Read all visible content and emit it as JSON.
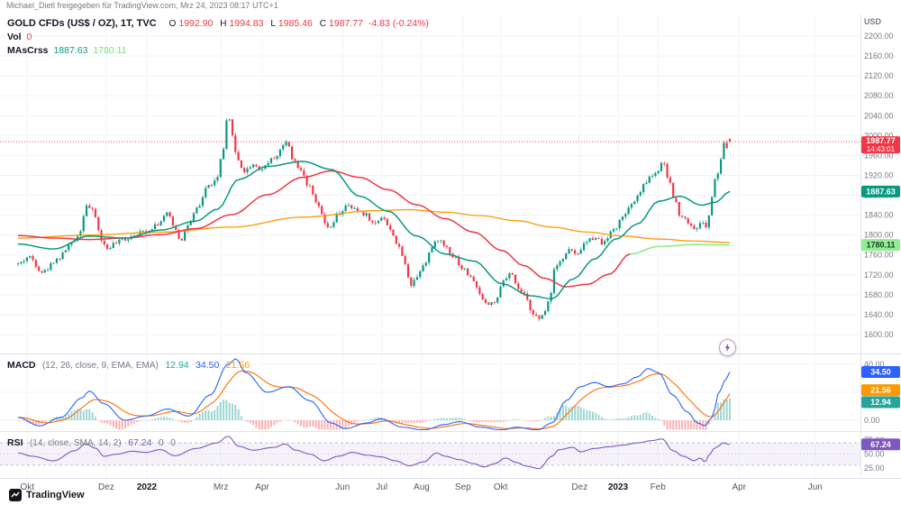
{
  "header": {
    "attribution": "Michael_Dietl freigegeben für TradingView.com, Mrz 24, 2023 08:17 UTC+1"
  },
  "footer": {
    "logo_text": "TradingView"
  },
  "price_pane": {
    "symbol": "GOLD CFDs (US$ / OZ), 1T, TVC",
    "currency": "USD",
    "ohlc": {
      "o_label": "O",
      "o": "1992.90",
      "h_label": "H",
      "h": "1994.83",
      "l_label": "L",
      "l": "1985.46",
      "c_label": "C",
      "c": "1987.77",
      "change": "-4.83 (-0.24%)"
    },
    "vol_label": "Vol",
    "vol_value": "0",
    "ma_label": "MAsCrss",
    "ma_fast_value": "1887.63",
    "ma_slow_value": "1780.11"
  },
  "macd_pane": {
    "title": "MACD",
    "params": "(12, 26, close, 9, EMA, EMA)",
    "hist_value": "12.94",
    "macd_value": "34.50",
    "signal_value": "21.56"
  },
  "rsi_pane": {
    "title": "RSI",
    "params": "(14, close, SMA, 14, 2)",
    "value": "67.24",
    "extra1": "0",
    "extra2": "0"
  },
  "chart_data": {
    "type": "candlestick",
    "title": "GOLD CFDs (US$ / OZ), 1T, TVC",
    "interval": "1T",
    "num_candles": 240,
    "seed": 42,
    "last_price": 1987.77,
    "last_candle": {
      "o": 1992.9,
      "h": 1994.83,
      "l": 1985.46,
      "c": 1987.77
    },
    "price_axis": {
      "min": 1580,
      "max": 2220,
      "ticks": [
        2200,
        2160,
        2120,
        2080,
        2040,
        2000,
        1960,
        1920,
        1880,
        1840,
        1800,
        1760,
        1720,
        1680,
        1640,
        1600
      ]
    },
    "x_labels": [
      {
        "t": 0.013,
        "label": "Okt"
      },
      {
        "t": 0.124,
        "label": "Dez"
      },
      {
        "t": 0.181,
        "label": "2022",
        "bold": true
      },
      {
        "t": 0.285,
        "label": "Mrz"
      },
      {
        "t": 0.343,
        "label": "Apr"
      },
      {
        "t": 0.456,
        "label": "Jun"
      },
      {
        "t": 0.511,
        "label": "Jul"
      },
      {
        "t": 0.567,
        "label": "Aug"
      },
      {
        "t": 0.625,
        "label": "Sep"
      },
      {
        "t": 0.678,
        "label": "Okt"
      },
      {
        "t": 0.789,
        "label": "Dez"
      },
      {
        "t": 0.843,
        "label": "2023",
        "bold": true
      },
      {
        "t": 0.899,
        "label": "Feb"
      },
      {
        "t": 1.013,
        "label": "Apr"
      },
      {
        "t": 1.12,
        "label": "Jun"
      }
    ],
    "close_path": [
      [
        0.0,
        1742
      ],
      [
        0.015,
        1756
      ],
      [
        0.035,
        1726
      ],
      [
        0.055,
        1752
      ],
      [
        0.075,
        1782
      ],
      [
        0.088,
        1808
      ],
      [
        0.095,
        1862
      ],
      [
        0.105,
        1848
      ],
      [
        0.118,
        1790
      ],
      [
        0.124,
        1772
      ],
      [
        0.135,
        1782
      ],
      [
        0.15,
        1792
      ],
      [
        0.165,
        1802
      ],
      [
        0.18,
        1808
      ],
      [
        0.195,
        1822
      ],
      [
        0.21,
        1842
      ],
      [
        0.222,
        1812
      ],
      [
        0.228,
        1790
      ],
      [
        0.24,
        1822
      ],
      [
        0.252,
        1852
      ],
      [
        0.266,
        1898
      ],
      [
        0.278,
        1908
      ],
      [
        0.288,
        1968
      ],
      [
        0.295,
        2042
      ],
      [
        0.3,
        2008
      ],
      [
        0.308,
        1952
      ],
      [
        0.318,
        1928
      ],
      [
        0.33,
        1942
      ],
      [
        0.342,
        1932
      ],
      [
        0.352,
        1948
      ],
      [
        0.362,
        1958
      ],
      [
        0.372,
        1978
      ],
      [
        0.378,
        1988
      ],
      [
        0.388,
        1948
      ],
      [
        0.398,
        1932
      ],
      [
        0.408,
        1898
      ],
      [
        0.42,
        1862
      ],
      [
        0.432,
        1822
      ],
      [
        0.438,
        1812
      ],
      [
        0.45,
        1842
      ],
      [
        0.462,
        1858
      ],
      [
        0.475,
        1850
      ],
      [
        0.488,
        1842
      ],
      [
        0.5,
        1822
      ],
      [
        0.512,
        1838
      ],
      [
        0.524,
        1808
      ],
      [
        0.536,
        1772
      ],
      [
        0.545,
        1738
      ],
      [
        0.551,
        1700
      ],
      [
        0.558,
        1712
      ],
      [
        0.57,
        1742
      ],
      [
        0.582,
        1775
      ],
      [
        0.59,
        1792
      ],
      [
        0.6,
        1778
      ],
      [
        0.612,
        1758
      ],
      [
        0.625,
        1732
      ],
      [
        0.638,
        1712
      ],
      [
        0.65,
        1678
      ],
      [
        0.66,
        1660
      ],
      [
        0.672,
        1668
      ],
      [
        0.682,
        1708
      ],
      [
        0.692,
        1722
      ],
      [
        0.702,
        1692
      ],
      [
        0.712,
        1678
      ],
      [
        0.72,
        1652
      ],
      [
        0.728,
        1636
      ],
      [
        0.733,
        1628
      ],
      [
        0.74,
        1648
      ],
      [
        0.748,
        1682
      ],
      [
        0.755,
        1742
      ],
      [
        0.765,
        1752
      ],
      [
        0.775,
        1772
      ],
      [
        0.785,
        1758
      ],
      [
        0.795,
        1782
      ],
      [
        0.805,
        1792
      ],
      [
        0.812,
        1798
      ],
      [
        0.82,
        1782
      ],
      [
        0.828,
        1798
      ],
      [
        0.838,
        1812
      ],
      [
        0.848,
        1832
      ],
      [
        0.858,
        1852
      ],
      [
        0.868,
        1872
      ],
      [
        0.878,
        1898
      ],
      [
        0.888,
        1918
      ],
      [
        0.898,
        1928
      ],
      [
        0.906,
        1944
      ],
      [
        0.914,
        1912
      ],
      [
        0.922,
        1872
      ],
      [
        0.93,
        1842
      ],
      [
        0.938,
        1832
      ],
      [
        0.944,
        1822
      ],
      [
        0.95,
        1812
      ],
      [
        0.956,
        1818
      ],
      [
        0.962,
        1828
      ],
      [
        0.966,
        1812
      ],
      [
        0.97,
        1838
      ],
      [
        0.974,
        1872
      ],
      [
        0.978,
        1908
      ],
      [
        0.982,
        1918
      ],
      [
        0.986,
        1942
      ],
      [
        0.99,
        1978
      ],
      [
        0.994,
        1988
      ],
      [
        0.997,
        1972
      ],
      [
        1.0,
        1987.77
      ]
    ],
    "ma_fast": {
      "color": "#089981",
      "end": 1887.63,
      "path": [
        [
          0,
          1782
        ],
        [
          0.05,
          1772
        ],
        [
          0.1,
          1798
        ],
        [
          0.15,
          1794
        ],
        [
          0.2,
          1810
        ],
        [
          0.25,
          1828
        ],
        [
          0.28,
          1852
        ],
        [
          0.31,
          1912
        ],
        [
          0.35,
          1938
        ],
        [
          0.4,
          1948
        ],
        [
          0.44,
          1932
        ],
        [
          0.48,
          1878
        ],
        [
          0.52,
          1848
        ],
        [
          0.56,
          1798
        ],
        [
          0.6,
          1762
        ],
        [
          0.64,
          1748
        ],
        [
          0.68,
          1702
        ],
        [
          0.72,
          1678
        ],
        [
          0.75,
          1672
        ],
        [
          0.78,
          1712
        ],
        [
          0.81,
          1752
        ],
        [
          0.84,
          1792
        ],
        [
          0.87,
          1822
        ],
        [
          0.9,
          1868
        ],
        [
          0.93,
          1878
        ],
        [
          0.96,
          1860
        ],
        [
          0.98,
          1866
        ],
        [
          1.0,
          1887.63
        ]
      ]
    },
    "ma_slow": {
      "color": "#F23645",
      "tail_color": "#90EE90",
      "switch_t": 0.86,
      "end": 1780.11,
      "path": [
        [
          0,
          1799
        ],
        [
          0.05,
          1794
        ],
        [
          0.1,
          1791
        ],
        [
          0.15,
          1794
        ],
        [
          0.2,
          1801
        ],
        [
          0.25,
          1813
        ],
        [
          0.3,
          1841
        ],
        [
          0.35,
          1881
        ],
        [
          0.4,
          1916
        ],
        [
          0.44,
          1929
        ],
        [
          0.48,
          1916
        ],
        [
          0.52,
          1891
        ],
        [
          0.56,
          1861
        ],
        [
          0.6,
          1833
        ],
        [
          0.64,
          1806
        ],
        [
          0.68,
          1769
        ],
        [
          0.71,
          1739
        ],
        [
          0.74,
          1713
        ],
        [
          0.77,
          1696
        ],
        [
          0.8,
          1701
        ],
        [
          0.83,
          1721
        ],
        [
          0.86,
          1762
        ],
        [
          0.9,
          1777
        ],
        [
          0.95,
          1781
        ],
        [
          1.0,
          1780.11
        ]
      ]
    },
    "ma_long": {
      "color": "#FF9800",
      "path": [
        [
          0,
          1794
        ],
        [
          0.1,
          1800
        ],
        [
          0.2,
          1806
        ],
        [
          0.3,
          1816
        ],
        [
          0.4,
          1836
        ],
        [
          0.5,
          1849
        ],
        [
          0.55,
          1851
        ],
        [
          0.6,
          1846
        ],
        [
          0.65,
          1839
        ],
        [
          0.7,
          1829
        ],
        [
          0.75,
          1816
        ],
        [
          0.8,
          1806
        ],
        [
          0.85,
          1798
        ],
        [
          0.9,
          1792
        ],
        [
          0.95,
          1788
        ],
        [
          1.0,
          1785
        ]
      ]
    },
    "macd": {
      "ticks": [
        40,
        20,
        0
      ],
      "line_color": "#2962FF",
      "signal_color": "#FF6D00",
      "hist_pos": "#26A69A",
      "hist_neg": "#FF5252",
      "end_line": 34.5,
      "end_signal": 21.56,
      "end_hist": 12.94,
      "line_path": [
        [
          0,
          2
        ],
        [
          0.03,
          -4
        ],
        [
          0.06,
          2
        ],
        [
          0.09,
          16
        ],
        [
          0.1,
          21
        ],
        [
          0.12,
          12
        ],
        [
          0.15,
          0
        ],
        [
          0.18,
          3
        ],
        [
          0.21,
          8
        ],
        [
          0.24,
          3
        ],
        [
          0.27,
          18
        ],
        [
          0.295,
          40
        ],
        [
          0.306,
          44
        ],
        [
          0.32,
          34
        ],
        [
          0.35,
          20
        ],
        [
          0.38,
          24
        ],
        [
          0.41,
          14
        ],
        [
          0.44,
          -2
        ],
        [
          0.46,
          -6
        ],
        [
          0.49,
          -2
        ],
        [
          0.51,
          1
        ],
        [
          0.54,
          -5
        ],
        [
          0.57,
          -7
        ],
        [
          0.6,
          -3
        ],
        [
          0.62,
          -1
        ],
        [
          0.65,
          -5
        ],
        [
          0.68,
          -7
        ],
        [
          0.7,
          -5
        ],
        [
          0.73,
          -7
        ],
        [
          0.75,
          -2
        ],
        [
          0.77,
          14
        ],
        [
          0.79,
          24
        ],
        [
          0.81,
          27
        ],
        [
          0.83,
          24
        ],
        [
          0.85,
          26
        ],
        [
          0.87,
          31
        ],
        [
          0.885,
          37
        ],
        [
          0.9,
          34
        ],
        [
          0.92,
          18
        ],
        [
          0.94,
          6
        ],
        [
          0.955,
          -2
        ],
        [
          0.965,
          -4
        ],
        [
          0.975,
          2
        ],
        [
          0.985,
          20
        ],
        [
          0.993,
          28
        ],
        [
          1.0,
          34.5
        ]
      ]
    },
    "rsi": {
      "ticks": [
        75,
        50,
        25
      ],
      "color": "#7E57C2",
      "upper": 70,
      "lower": 30,
      "mid": 50,
      "end": 67.24,
      "path": [
        [
          0,
          52
        ],
        [
          0.02,
          46
        ],
        [
          0.05,
          38
        ],
        [
          0.08,
          56
        ],
        [
          0.095,
          68
        ],
        [
          0.11,
          60
        ],
        [
          0.12,
          46
        ],
        [
          0.14,
          50
        ],
        [
          0.16,
          55
        ],
        [
          0.18,
          53
        ],
        [
          0.2,
          58
        ],
        [
          0.22,
          47
        ],
        [
          0.25,
          60
        ],
        [
          0.28,
          70
        ],
        [
          0.295,
          82
        ],
        [
          0.31,
          64
        ],
        [
          0.33,
          57
        ],
        [
          0.36,
          62
        ],
        [
          0.375,
          68
        ],
        [
          0.39,
          57
        ],
        [
          0.41,
          50
        ],
        [
          0.43,
          38
        ],
        [
          0.45,
          46
        ],
        [
          0.47,
          53
        ],
        [
          0.49,
          48
        ],
        [
          0.51,
          45
        ],
        [
          0.53,
          38
        ],
        [
          0.55,
          29
        ],
        [
          0.57,
          36
        ],
        [
          0.588,
          52
        ],
        [
          0.6,
          46
        ],
        [
          0.62,
          40
        ],
        [
          0.64,
          33
        ],
        [
          0.655,
          27
        ],
        [
          0.67,
          33
        ],
        [
          0.685,
          43
        ],
        [
          0.7,
          35
        ],
        [
          0.715,
          28
        ],
        [
          0.732,
          24
        ],
        [
          0.75,
          46
        ],
        [
          0.76,
          58
        ],
        [
          0.78,
          62
        ],
        [
          0.79,
          54
        ],
        [
          0.81,
          60
        ],
        [
          0.83,
          63
        ],
        [
          0.85,
          66
        ],
        [
          0.87,
          70
        ],
        [
          0.89,
          74
        ],
        [
          0.905,
          77
        ],
        [
          0.92,
          56
        ],
        [
          0.935,
          46
        ],
        [
          0.95,
          38
        ],
        [
          0.958,
          43
        ],
        [
          0.965,
          36
        ],
        [
          0.972,
          50
        ],
        [
          0.978,
          60
        ],
        [
          0.984,
          64
        ],
        [
          0.99,
          70
        ],
        [
          1.0,
          67.24
        ]
      ]
    },
    "colors": {
      "up": "#089981",
      "down": "#F23645",
      "grid": "#f0f3fa",
      "separator": "#e0e3eb",
      "axis_text": "#787b86"
    },
    "badges": [
      {
        "pane": "price",
        "value": "1987.77",
        "sub": "14:43:01",
        "bg": "#F23645",
        "fg": "#ffffff",
        "price": 1987.77
      },
      {
        "pane": "price",
        "value": "1887.63",
        "bg": "#089981",
        "fg": "#ffffff",
        "price": 1887.63
      },
      {
        "pane": "price",
        "value": "1780.11",
        "bg": "#90EE90",
        "fg": "#1c3d2e",
        "price": 1780.11
      },
      {
        "pane": "macd",
        "value": "34.50",
        "bg": "#2962FF",
        "fg": "#ffffff",
        "v": 34.5
      },
      {
        "pane": "macd",
        "value": "21.56",
        "bg": "#FF9800",
        "fg": "#ffffff",
        "v": 21.56
      },
      {
        "pane": "macd",
        "value": "12.94",
        "bg": "#26A69A",
        "fg": "#ffffff",
        "v": 12.94
      },
      {
        "pane": "rsi",
        "value": "67.24",
        "bg": "#7E57C2",
        "fg": "#ffffff",
        "v": 67.24
      }
    ]
  }
}
